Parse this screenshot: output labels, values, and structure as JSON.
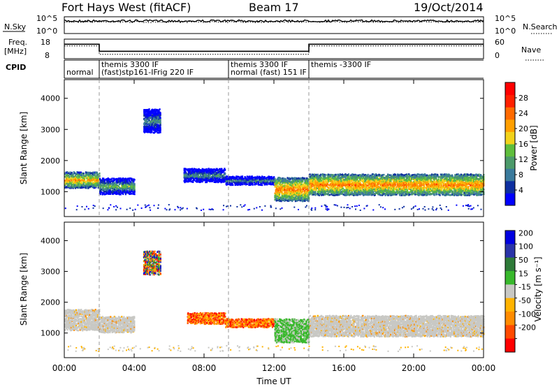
{
  "header": {
    "site": "Fort Hays West (fitACF)",
    "beam": "Beam 17",
    "date": "19/Oct/2014"
  },
  "chart_data": [
    {
      "type": "line",
      "panel": "noise",
      "left_label": "N.Sky",
      "right_label": "N.Search",
      "left_ticks": [
        "10^5",
        "10^0"
      ],
      "right_ticks": [
        "10^5",
        "10^0"
      ],
      "series": [
        {
          "name": "N.Sky",
          "style": "solid",
          "approx_log10_level": 4.0
        },
        {
          "name": "N.Search",
          "style": "dotted",
          "approx_log10_level": 4.0
        }
      ]
    },
    {
      "type": "line",
      "panel": "frequency",
      "left_label_lines": [
        "Freq.",
        "[MHz]"
      ],
      "right_label": "Nave",
      "left_ticks": [
        "18",
        "8"
      ],
      "right_ticks": [
        "60",
        "0"
      ],
      "ylim_left": [
        8,
        18
      ],
      "ylim_right": [
        0,
        60
      ],
      "series": [
        {
          "name": "Freq.",
          "style": "solid",
          "x_hours": [
            0,
            2.0,
            2.0,
            14.0,
            14.0,
            24
          ],
          "y": [
            15.8,
            15.8,
            11.6,
            11.6,
            15.8,
            15.8
          ]
        },
        {
          "name": "Nave",
          "style": "dotted",
          "x_hours": [
            0,
            2.0,
            2.0,
            14.0,
            14.0,
            24
          ],
          "y": [
            16,
            16,
            11,
            11,
            16,
            16
          ]
        }
      ]
    },
    {
      "type": "table",
      "panel": "cpid",
      "label": "CPID",
      "segments": [
        {
          "start_h": 0.0,
          "end_h": 2.0,
          "upper": "",
          "lower": "normal"
        },
        {
          "start_h": 2.0,
          "end_h": 9.4,
          "upper": "themis 3300 IF",
          "lower": "(fast)stp161-IFrig 220 IF"
        },
        {
          "start_h": 9.4,
          "end_h": 14.0,
          "upper": "themis 3300 IF",
          "lower": "normal (fast)  151 IF"
        },
        {
          "start_h": 14.0,
          "end_h": 24.0,
          "upper": "themis -3300 IF",
          "lower": ""
        }
      ]
    },
    {
      "type": "heatmap",
      "panel": "power",
      "ylabel": "Slant Range [km]",
      "colorbar_label": "Power [dB]",
      "colorbar_ticks": [
        4,
        8,
        12,
        16,
        20,
        24,
        28
      ],
      "colorbar_range": [
        0,
        32
      ],
      "ylim": [
        200,
        4600
      ],
      "yticks": [
        1000,
        2000,
        3000,
        4000
      ],
      "colors": [
        "#0000ff",
        "#0e2fa0",
        "#3a7a9c",
        "#4c9a6a",
        "#5fbe3c",
        "#f2d21a",
        "#ff9f00",
        "#ff6a00",
        "#ff2000",
        "#ff0000"
      ],
      "regions": [
        {
          "start_h": 0.0,
          "end_h": 2.0,
          "center_km": 1400,
          "half_km": 250,
          "db_mid": 22
        },
        {
          "start_h": 2.0,
          "end_h": 4.0,
          "center_km": 1200,
          "half_km": 250,
          "db_mid": 14
        },
        {
          "start_h": 4.5,
          "end_h": 5.5,
          "center_km": 3300,
          "half_km": 350,
          "db_mid": 10
        },
        {
          "start_h": 6.8,
          "end_h": 9.2,
          "center_km": 1550,
          "half_km": 200,
          "db_mid": 10
        },
        {
          "start_h": 9.2,
          "end_h": 12.0,
          "center_km": 1380,
          "half_km": 120,
          "db_mid": 10
        },
        {
          "start_h": 12.0,
          "end_h": 14.0,
          "center_km": 1100,
          "half_km": 350,
          "db_mid": 24
        },
        {
          "start_h": 14.0,
          "end_h": 24.0,
          "center_km": 1250,
          "half_km": 320,
          "db_mid": 24
        }
      ]
    },
    {
      "type": "heatmap",
      "panel": "velocity",
      "ylabel": "Slant Range [km]",
      "xlabel": "Time UT",
      "colorbar_label": "Velocity [m s⁻¹]",
      "colorbar_ticks": [
        "200",
        "100",
        "50",
        "15",
        "-15",
        "-50",
        "-100",
        "-200"
      ],
      "ylim": [
        200,
        4600
      ],
      "yticks": [
        1000,
        2000,
        3000,
        4000
      ],
      "x_ticks": [
        "00:00",
        "04:00",
        "08:00",
        "12:00",
        "16:00",
        "20:00",
        "00:00"
      ],
      "x_range_hours": [
        0,
        24
      ],
      "colors": [
        "#ff0000",
        "#ff4a00",
        "#ff8c00",
        "#ffb300",
        "#c8c8c4",
        "#38b82c",
        "#2e7a38",
        "#2a34a8",
        "#0000e0"
      ],
      "regions": [
        {
          "start_h": 0.0,
          "end_h": 2.0,
          "center_km": 1450,
          "half_km": 300,
          "class": "ground"
        },
        {
          "start_h": 2.0,
          "end_h": 4.0,
          "center_km": 1300,
          "half_km": 250,
          "class": "ground"
        },
        {
          "start_h": 4.5,
          "end_h": 5.5,
          "center_km": 3300,
          "half_km": 350,
          "class": "mixed"
        },
        {
          "start_h": 7.0,
          "end_h": 9.2,
          "center_km": 1500,
          "half_km": 150,
          "class": "negative"
        },
        {
          "start_h": 9.2,
          "end_h": 12.0,
          "center_km": 1350,
          "half_km": 100,
          "class": "negative"
        },
        {
          "start_h": 12.0,
          "end_h": 14.0,
          "center_km": 1100,
          "half_km": 350,
          "class": "positive"
        },
        {
          "start_h": 14.0,
          "end_h": 24.0,
          "center_km": 1250,
          "half_km": 320,
          "class": "ground"
        }
      ]
    }
  ]
}
